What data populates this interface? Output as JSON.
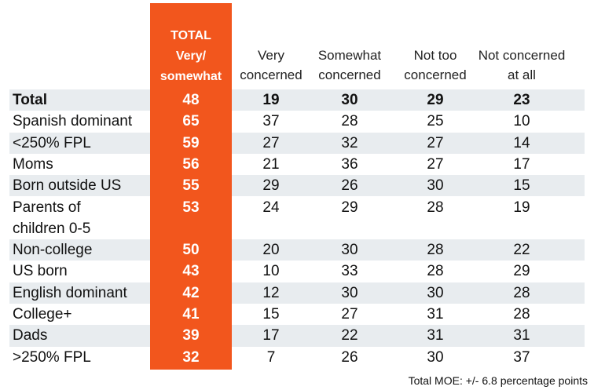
{
  "chart_data": {
    "type": "table",
    "header": {
      "total": [
        "TOTAL",
        "Very/",
        "somewhat"
      ],
      "columns": [
        [
          "Very",
          "concerned"
        ],
        [
          "Somewhat",
          "concerned"
        ],
        [
          "Not too",
          "concerned"
        ],
        [
          "Not concerned",
          "at all"
        ]
      ]
    },
    "rows": [
      {
        "label": [
          "Total"
        ],
        "total": 48,
        "values": [
          19,
          30,
          29,
          23
        ],
        "bold": true,
        "shaded": true
      },
      {
        "label": [
          "Spanish dominant"
        ],
        "total": 65,
        "values": [
          37,
          28,
          25,
          10
        ],
        "shaded": false
      },
      {
        "label": [
          "<250% FPL"
        ],
        "total": 59,
        "values": [
          27,
          32,
          27,
          14
        ],
        "shaded": true
      },
      {
        "label": [
          "Moms"
        ],
        "total": 56,
        "values": [
          21,
          36,
          27,
          17
        ],
        "shaded": false
      },
      {
        "label": [
          "Born outside US"
        ],
        "total": 55,
        "values": [
          29,
          26,
          30,
          15
        ],
        "shaded": true
      },
      {
        "label": [
          "Parents of",
          "children 0-5"
        ],
        "total": 53,
        "values": [
          24,
          29,
          28,
          19
        ],
        "shaded": false
      },
      {
        "label": [
          "Non-college"
        ],
        "total": 50,
        "values": [
          20,
          30,
          28,
          22
        ],
        "shaded": true
      },
      {
        "label": [
          "US born"
        ],
        "total": 43,
        "values": [
          10,
          33,
          28,
          29
        ],
        "shaded": false
      },
      {
        "label": [
          "English dominant"
        ],
        "total": 42,
        "values": [
          12,
          30,
          30,
          28
        ],
        "shaded": true
      },
      {
        "label": [
          "College+"
        ],
        "total": 41,
        "values": [
          15,
          27,
          31,
          28
        ],
        "shaded": false
      },
      {
        "label": [
          "Dads"
        ],
        "total": 39,
        "values": [
          17,
          22,
          31,
          31
        ],
        "shaded": true
      },
      {
        "label": [
          ">250% FPL"
        ],
        "total": 32,
        "values": [
          7,
          26,
          30,
          37
        ],
        "shaded": false
      }
    ],
    "note": "Total MOE: +/- 6.8 percentage points"
  },
  "colors": {
    "accent": "#f2561d",
    "row_shade": "#e8ecef"
  }
}
